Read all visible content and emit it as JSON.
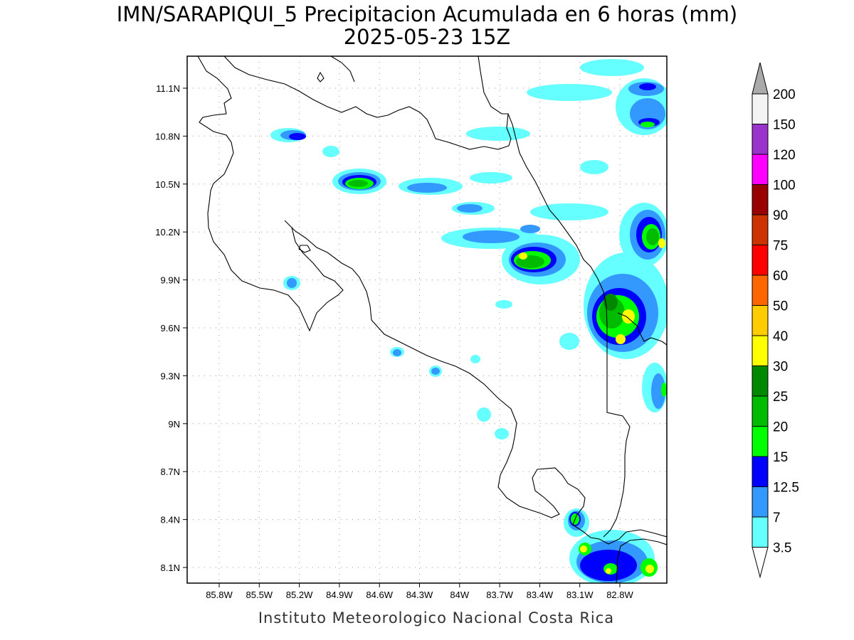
{
  "title": {
    "line1": "IMN/SARAPIQUI_5 Precipitacion Acumulada en 6 horas (mm)",
    "line2": "2025-05-23 15Z"
  },
  "footer": "Instituto Meteorologico Nacional Costa Rica",
  "map": {
    "lon_ticks": [
      "85.8W",
      "85.5W",
      "85.2W",
      "84.9W",
      "84.6W",
      "84.3W",
      "84W",
      "83.7W",
      "83.4W",
      "83.1W",
      "82.8W"
    ],
    "lat_ticks": [
      "11.1N",
      "10.8N",
      "10.5N",
      "10.2N",
      "9.9N",
      "9.6N",
      "9.3N",
      "9N",
      "8.7N",
      "8.4N",
      "8.1N"
    ],
    "grid": true
  },
  "colorbar": {
    "labels": [
      "200",
      "150",
      "120",
      "100",
      "90",
      "75",
      "60",
      "50",
      "40",
      "30",
      "25",
      "20",
      "15",
      "12.5",
      "7",
      "3.5"
    ],
    "colors": [
      "#aaaaaa",
      "#f4f4f4",
      "#9933cc",
      "#ff00ff",
      "#990000",
      "#cc3300",
      "#ff0000",
      "#ff6600",
      "#ffcc00",
      "#ffff00",
      "#008800",
      "#00bb00",
      "#00ff00",
      "#0000ff",
      "#3399ff",
      "#66ffff",
      "#ffffff"
    ]
  }
}
